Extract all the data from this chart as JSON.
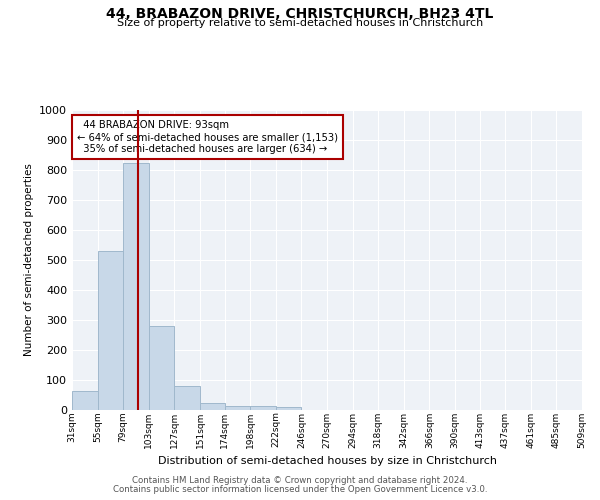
{
  "title": "44, BRABAZON DRIVE, CHRISTCHURCH, BH23 4TL",
  "subtitle": "Size of property relative to semi-detached houses in Christchurch",
  "xlabel": "Distribution of semi-detached houses by size in Christchurch",
  "ylabel": "Number of semi-detached properties",
  "footnote1": "Contains HM Land Registry data © Crown copyright and database right 2024.",
  "footnote2": "Contains public sector information licensed under the Open Government Licence v3.0.",
  "bar_edges": [
    31,
    55,
    79,
    103,
    127,
    151,
    174,
    198,
    222,
    246,
    270,
    294,
    318,
    342,
    366,
    390,
    413,
    437,
    461,
    485,
    509
  ],
  "bar_values": [
    65,
    530,
    825,
    280,
    80,
    22,
    14,
    14,
    10,
    0,
    0,
    0,
    0,
    0,
    0,
    0,
    0,
    0,
    0,
    0
  ],
  "property_size": 93,
  "property_label": "44 BRABAZON DRIVE: 93sqm",
  "pct_smaller": 64,
  "pct_smaller_n": 1153,
  "pct_larger": 35,
  "pct_larger_n": 634,
  "bar_color": "#c8d8e8",
  "bar_edge_color": "#a0b8cc",
  "highlight_line_color": "#aa0000",
  "annotation_box_color": "#aa0000",
  "background_color": "#eef2f7",
  "ylim": [
    0,
    1000
  ],
  "xlim_labels": [
    "31sqm",
    "55sqm",
    "79sqm",
    "103sqm",
    "127sqm",
    "151sqm",
    "174sqm",
    "198sqm",
    "222sqm",
    "246sqm",
    "270sqm",
    "294sqm",
    "318sqm",
    "342sqm",
    "366sqm",
    "390sqm",
    "413sqm",
    "437sqm",
    "461sqm",
    "485sqm",
    "509sqm"
  ]
}
